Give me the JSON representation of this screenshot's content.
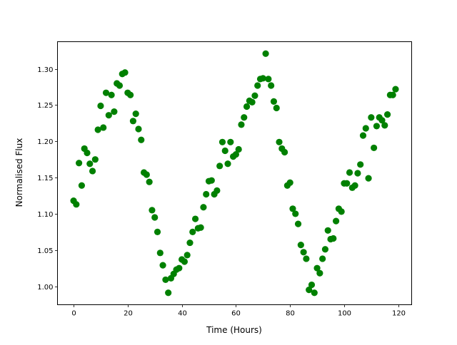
{
  "chart_data": {
    "type": "scatter",
    "title": "",
    "xlabel": "Time (Hours)",
    "ylabel": "Normalised Flux",
    "xlim": [
      -5.95,
      124.95
    ],
    "ylim": [
      0.9745,
      1.3375
    ],
    "xticks": [
      0,
      20,
      40,
      60,
      80,
      100,
      120
    ],
    "xtick_labels": [
      "0",
      "20",
      "40",
      "60",
      "80",
      "100",
      "120"
    ],
    "yticks": [
      1.0,
      1.05,
      1.1,
      1.15,
      1.2,
      1.25,
      1.3
    ],
    "ytick_labels": [
      "1.00",
      "1.05",
      "1.10",
      "1.15",
      "1.20",
      "1.25",
      "1.30"
    ],
    "grid": false,
    "marker_color": "#008000",
    "series": [
      {
        "x": [
          0,
          1,
          2,
          3,
          4,
          5,
          6,
          7,
          8,
          9,
          10,
          11,
          12,
          13,
          14,
          15,
          16,
          17,
          18,
          19,
          20,
          21,
          22,
          23,
          24,
          25,
          26,
          27,
          28,
          29,
          30,
          31,
          32,
          33,
          34,
          35,
          36,
          37,
          38,
          39,
          40,
          41,
          42,
          43,
          44,
          45,
          46,
          47,
          48,
          49,
          50,
          51,
          52,
          53,
          54,
          55,
          56,
          57,
          58,
          59,
          60,
          61,
          62,
          63,
          64,
          65,
          66,
          67,
          68,
          69,
          70,
          71,
          72,
          73,
          74,
          75,
          76,
          77,
          78,
          79,
          80,
          81,
          82,
          83,
          84,
          85,
          86,
          87,
          88,
          89,
          90,
          91,
          92,
          93,
          94,
          95,
          96,
          97,
          98,
          99,
          100,
          101,
          102,
          103,
          104,
          105,
          106,
          107,
          108,
          109,
          110,
          111,
          112,
          113,
          114,
          115,
          116,
          117,
          118,
          119
        ],
        "y": [
          1.118,
          1.113,
          1.17,
          1.139,
          1.19,
          1.184,
          1.169,
          1.159,
          1.175,
          1.216,
          1.249,
          1.219,
          1.267,
          1.236,
          1.264,
          1.241,
          1.28,
          1.277,
          1.293,
          1.295,
          1.267,
          1.264,
          1.228,
          1.238,
          1.217,
          1.202,
          1.157,
          1.154,
          1.144,
          1.105,
          1.095,
          1.075,
          1.046,
          1.029,
          1.009,
          0.991,
          1.011,
          1.017,
          1.023,
          1.025,
          1.037,
          1.034,
          1.043,
          1.06,
          1.075,
          1.093,
          1.08,
          1.081,
          1.109,
          1.127,
          1.145,
          1.146,
          1.127,
          1.132,
          1.166,
          1.199,
          1.187,
          1.169,
          1.199,
          1.179,
          1.182,
          1.189,
          1.223,
          1.233,
          1.248,
          1.256,
          1.254,
          1.263,
          1.277,
          1.286,
          1.287,
          1.321,
          1.286,
          1.277,
          1.255,
          1.246,
          1.199,
          1.19,
          1.185,
          1.139,
          1.143,
          1.107,
          1.1,
          1.086,
          1.057,
          1.047,
          1.038,
          0.995,
          1.002,
          0.991,
          1.025,
          1.018,
          1.038,
          1.051,
          1.077,
          1.065,
          1.066,
          1.09,
          1.107,
          1.103,
          1.142,
          1.142,
          1.157,
          1.136,
          1.139,
          1.156,
          1.168,
          1.208,
          1.218,
          1.149,
          1.233,
          1.191,
          1.221,
          1.233,
          1.229,
          1.222,
          1.237,
          1.264,
          1.264,
          1.272
        ]
      }
    ]
  }
}
